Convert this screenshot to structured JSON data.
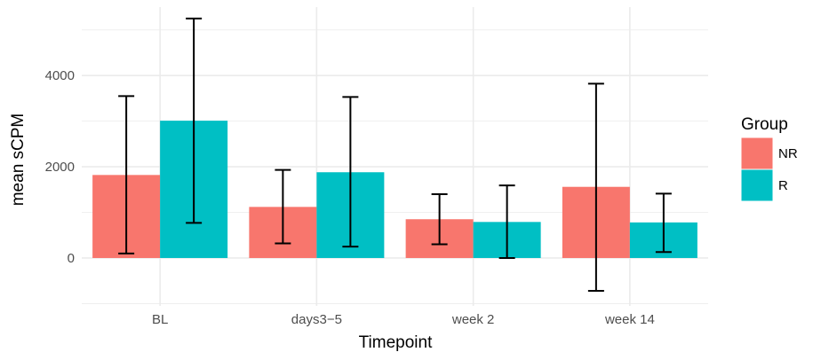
{
  "chart_data": {
    "type": "bar",
    "xlabel": "Timepoint",
    "ylabel": "mean sCPM",
    "categories": [
      "BL",
      "days3−5",
      "week 2",
      "week 14"
    ],
    "series": [
      {
        "name": "NR",
        "color": "#F8766D",
        "values": [
          1820,
          1120,
          850,
          1560
        ],
        "error_low": [
          100,
          320,
          300,
          -720
        ],
        "error_high": [
          3550,
          1930,
          1400,
          3820
        ]
      },
      {
        "name": "R",
        "color": "#00BFC4",
        "values": [
          3010,
          1880,
          790,
          780
        ],
        "error_low": [
          770,
          250,
          0,
          130
        ],
        "error_high": [
          5250,
          3530,
          1590,
          1410
        ]
      }
    ],
    "yticks": [
      0,
      2000,
      4000
    ],
    "ylim": [
      -1050,
      5500
    ],
    "grid": true,
    "legend": {
      "title": "Group",
      "position": "right"
    }
  }
}
